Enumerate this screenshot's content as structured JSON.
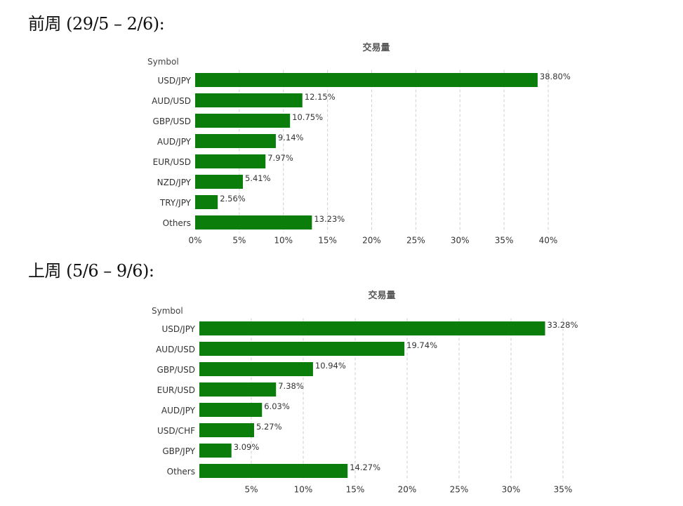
{
  "sections": [
    {
      "heading": "前周 (29/5 – 2/6):",
      "chart_data": {
        "type": "bar",
        "orientation": "horizontal",
        "title": "交易量",
        "ylabel": "Symbol",
        "categories": [
          "USD/JPY",
          "AUD/USD",
          "GBP/USD",
          "AUD/JPY",
          "EUR/USD",
          "NZD/JPY",
          "TRY/JPY",
          "Others"
        ],
        "values": [
          38.8,
          12.15,
          10.75,
          9.14,
          7.97,
          5.41,
          2.56,
          13.23
        ],
        "value_labels": [
          "38.80%",
          "12.15%",
          "10.75%",
          "9.14%",
          "7.97%",
          "5.41%",
          "2.56%",
          "13.23%"
        ],
        "xlim": [
          0,
          40
        ],
        "xticks": [
          0,
          5,
          10,
          15,
          20,
          25,
          30,
          35,
          40
        ],
        "xtick_labels": [
          "0%",
          "5%",
          "10%",
          "15%",
          "20%",
          "25%",
          "30%",
          "35%",
          "40%"
        ],
        "bar_color": "#0a7d0a",
        "grid": true
      }
    },
    {
      "heading": "上周 (5/6 – 9/6):",
      "chart_data": {
        "type": "bar",
        "orientation": "horizontal",
        "title": "交易量",
        "ylabel": "Symbol",
        "categories": [
          "USD/JPY",
          "AUD/USD",
          "GBP/USD",
          "EUR/USD",
          "AUD/JPY",
          "USD/CHF",
          "GBP/JPY",
          "Others"
        ],
        "values": [
          33.28,
          19.74,
          10.94,
          7.38,
          6.03,
          5.27,
          3.09,
          14.27
        ],
        "value_labels": [
          "33.28%",
          "19.74%",
          "10.94%",
          "7.38%",
          "6.03%",
          "5.27%",
          "3.09%",
          "14.27%"
        ],
        "xlim": [
          0,
          35
        ],
        "xticks": [
          5,
          10,
          15,
          20,
          25,
          30,
          35
        ],
        "xtick_labels": [
          "5%",
          "10%",
          "15%",
          "20%",
          "25%",
          "30%",
          "35%"
        ],
        "bar_color": "#0a7d0a",
        "grid": true
      }
    }
  ]
}
